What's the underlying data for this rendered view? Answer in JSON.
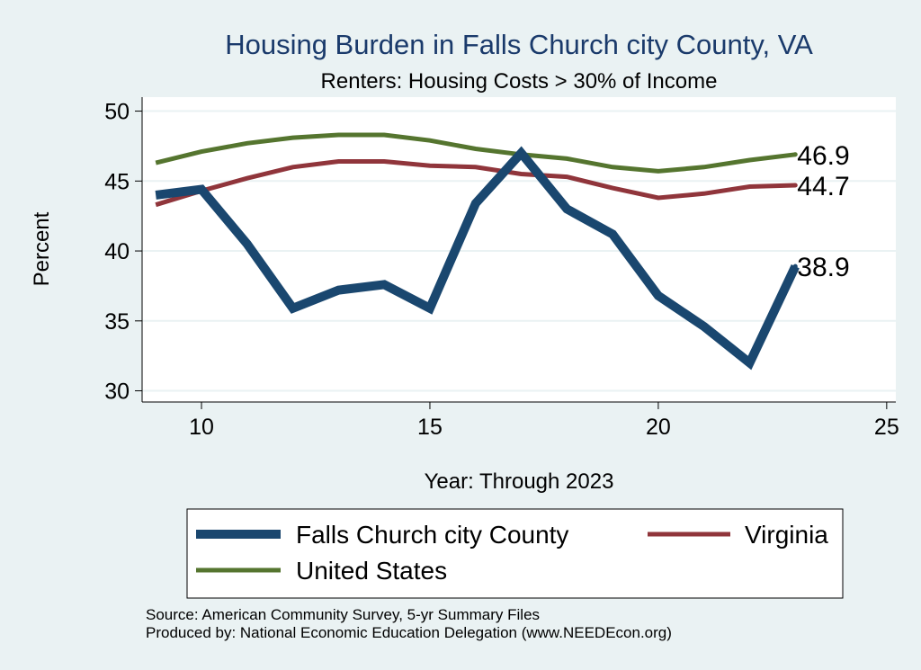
{
  "colors": {
    "background": "#eaf2f3",
    "plot_background": "#ffffff",
    "grid": "#eaf2f3",
    "falls_church": "#1a476f",
    "virginia": "#90353b",
    "united_states": "#55752f"
  },
  "chart_data": {
    "type": "line",
    "title": "Housing Burden in Falls Church city County, VA",
    "subtitle": "Renters: Housing Costs > 30% of Income",
    "xlabel": "Year: Through 2023",
    "ylabel": "Percent",
    "xlim": [
      8.7,
      25.2
    ],
    "ylim": [
      29.2,
      51
    ],
    "xticks": [
      10,
      15,
      20,
      25
    ],
    "yticks": [
      30,
      35,
      40,
      45,
      50
    ],
    "grid": true,
    "legend_position": "bottom",
    "x": [
      9,
      10,
      11,
      12,
      13,
      14,
      15,
      16,
      17,
      18,
      19,
      20,
      21,
      22,
      23
    ],
    "series": [
      {
        "name": "Falls Church city County",
        "color": "#1a476f",
        "values": [
          44.0,
          44.4,
          40.5,
          35.9,
          37.2,
          37.6,
          35.9,
          43.4,
          47.0,
          43.0,
          41.2,
          36.8,
          34.6,
          32.0,
          38.9
        ],
        "end_label": "38.9"
      },
      {
        "name": "Virginia",
        "color": "#90353b",
        "values": [
          43.3,
          44.3,
          45.2,
          46.0,
          46.4,
          46.4,
          46.1,
          46.0,
          45.5,
          45.3,
          44.5,
          43.8,
          44.1,
          44.6,
          44.7
        ],
        "end_label": "44.7"
      },
      {
        "name": "United States",
        "color": "#55752f",
        "values": [
          46.3,
          47.1,
          47.7,
          48.1,
          48.3,
          48.3,
          47.9,
          47.3,
          46.9,
          46.6,
          46.0,
          45.7,
          46.0,
          46.5,
          46.9
        ],
        "end_label": "46.9"
      }
    ]
  },
  "legend": {
    "falls_church": "Falls Church city County",
    "virginia": "Virginia",
    "united_states": "United States"
  },
  "notes": {
    "source": "Source: American Community Survey, 5-yr Summary Files",
    "produced_by": "Produced by: National Economic Education Delegation (www.NEEDEcon.org)"
  }
}
